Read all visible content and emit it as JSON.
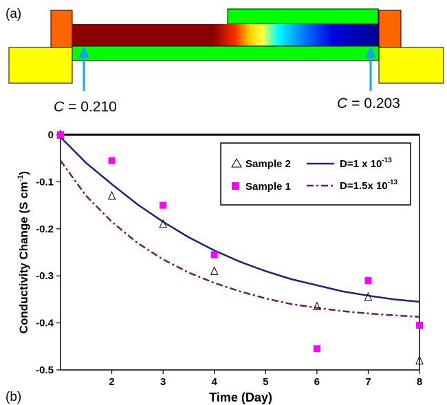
{
  "panel_a": {
    "label": "(a)",
    "left_concentration": {
      "symbol": "C",
      "value": "= 0.210"
    },
    "right_concentration": {
      "symbol": "C",
      "value": "= 0.203"
    },
    "colors": {
      "electrode": "#ffff00",
      "contact": "#ff6600",
      "film": "#00ff00",
      "arrow": "#1aa3e8"
    }
  },
  "panel_b": {
    "label": "(b)"
  },
  "chart_data": {
    "type": "scatter",
    "xlabel": "Time (Day)",
    "ylabel": "Conductivity Change (S cm",
    "ylabel_sup": "-1",
    "ylabel_close": ")",
    "xlim": [
      1,
      8
    ],
    "ylim": [
      -0.5,
      0
    ],
    "x_ticks": [
      "2",
      "3",
      "4",
      "5",
      "6",
      "7",
      "8"
    ],
    "y_ticks": [
      "0",
      "-0.1",
      "-0.2",
      "-0.3",
      "-0.4",
      "-0.5"
    ],
    "series": [
      {
        "name": "Sample 2",
        "marker": "triangle-open",
        "color": "#000000",
        "x": [
          1,
          2,
          3,
          4,
          6,
          7,
          8
        ],
        "y": [
          0,
          -0.13,
          -0.19,
          -0.29,
          -0.365,
          -0.345,
          -0.48
        ]
      },
      {
        "name": "Sample 1",
        "marker": "square",
        "color": "#ff00ff",
        "x": [
          1,
          2,
          3,
          4,
          6,
          7,
          8
        ],
        "y": [
          0,
          -0.055,
          -0.15,
          -0.255,
          -0.455,
          -0.31,
          -0.405
        ]
      }
    ],
    "curves": [
      {
        "name_main": "D=1 x 10",
        "name_sup": "-13",
        "style": "solid",
        "color": "#1a237e",
        "x": [
          1,
          1.5,
          2,
          2.5,
          3,
          3.5,
          4,
          4.5,
          5,
          5.5,
          6,
          6.5,
          7,
          7.5,
          8
        ],
        "y": [
          -0.005,
          -0.06,
          -0.105,
          -0.148,
          -0.185,
          -0.218,
          -0.246,
          -0.27,
          -0.29,
          -0.307,
          -0.32,
          -0.333,
          -0.342,
          -0.35,
          -0.355
        ]
      },
      {
        "name_main": "D=1.5x 10",
        "name_sup": "-13",
        "style": "dashdot",
        "color": "#6a1b6f",
        "x": [
          1,
          1.5,
          2,
          2.5,
          3,
          3.5,
          4,
          4.5,
          5,
          5.5,
          6,
          6.5,
          7,
          7.5,
          8
        ],
        "y": [
          -0.055,
          -0.13,
          -0.185,
          -0.23,
          -0.265,
          -0.293,
          -0.315,
          -0.333,
          -0.348,
          -0.36,
          -0.368,
          -0.375,
          -0.38,
          -0.384,
          -0.387
        ]
      }
    ],
    "legend_position": "top-right",
    "grid": false
  }
}
